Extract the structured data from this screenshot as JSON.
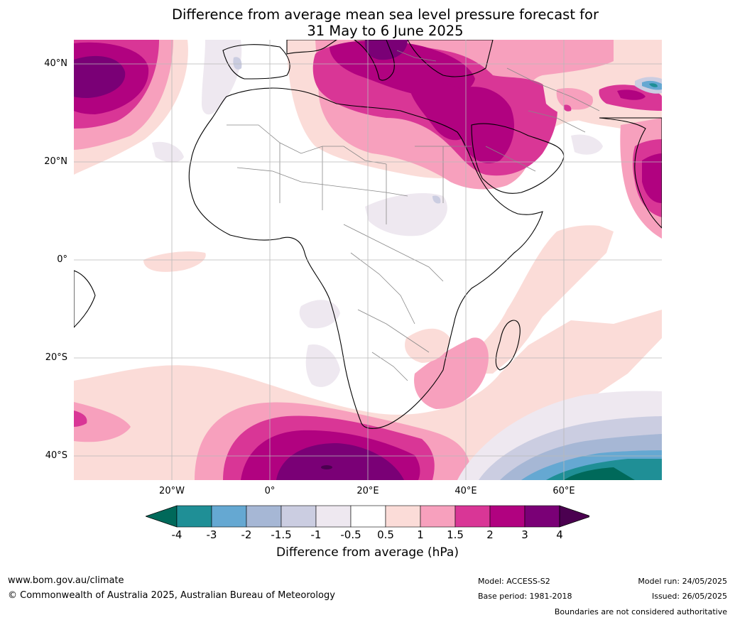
{
  "title_line1": "Difference from average mean sea level pressure forecast for",
  "title_line2": "31 May to 6 June 2025",
  "lat_labels": [
    "40°N",
    "20°N",
    "0°",
    "20°S",
    "40°S"
  ],
  "lon_labels": [
    "20°W",
    "0°",
    "20°E",
    "40°E",
    "60°E"
  ],
  "colorbar": {
    "ticks": [
      "-4",
      "-3",
      "-2",
      "-1.5",
      "-1",
      "-0.5",
      "0.5",
      "1",
      "1.5",
      "2",
      "3",
      "4"
    ],
    "colors": [
      "#00695a",
      "#1f8f96",
      "#65a8d2",
      "#a6b7d5",
      "#cbcde1",
      "#eee8f0",
      "#ffffff",
      "#fbdcd8",
      "#f7a0bd",
      "#d93696",
      "#b10280",
      "#7a0076",
      "#4b0050"
    ],
    "label": "Difference from average (hPa)"
  },
  "footer": {
    "url": "www.bom.gov.au/climate",
    "copyright": "© Commonwealth of Australia 2025, Australian Bureau of Meteorology",
    "model": "Model: ACCESS-S2",
    "base_period": "Base period: 1981-2018",
    "model_run": "Model run: 24/05/2025",
    "issued": "Issued: 26/05/2025",
    "boundaries": "Boundaries are not considered authoritative"
  }
}
